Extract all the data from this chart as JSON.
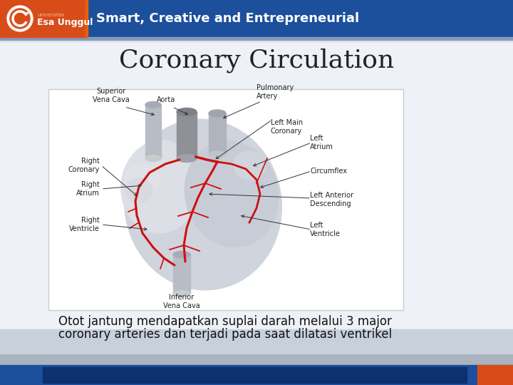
{
  "title": "Coronary Circulation",
  "title_fontsize": 26,
  "title_color": "#222222",
  "body_text_line1": "Otot jantung mendapatkan suplai darah melalui 3 major",
  "body_text_line2": "coronary arteries dan terjadi pada saat dilatasi ventrikel",
  "body_fontsize": 12,
  "body_color": "#111111",
  "header_bg_blue": "#1c4f9c",
  "header_bg_orange": "#d84c1a",
  "header_text": "Smart, Creative and Entrepreneurial",
  "header_text_color": "#ffffff",
  "header_text_fontsize": 13,
  "footer_bg_blue": "#1c4f9c",
  "footer_bg_orange": "#d84c1a",
  "slide_bg_top": "#c8d4e8",
  "slide_bg_bottom": "#e8eef5",
  "content_bg": "#f0f4f8",
  "white": "#ffffff",
  "heart_main": "#d4d8e0",
  "heart_dark": "#b8bcc8",
  "artery_red": "#cc1111",
  "vessel_gray": "#909090",
  "label_fs": 7,
  "label_color": "#222222"
}
